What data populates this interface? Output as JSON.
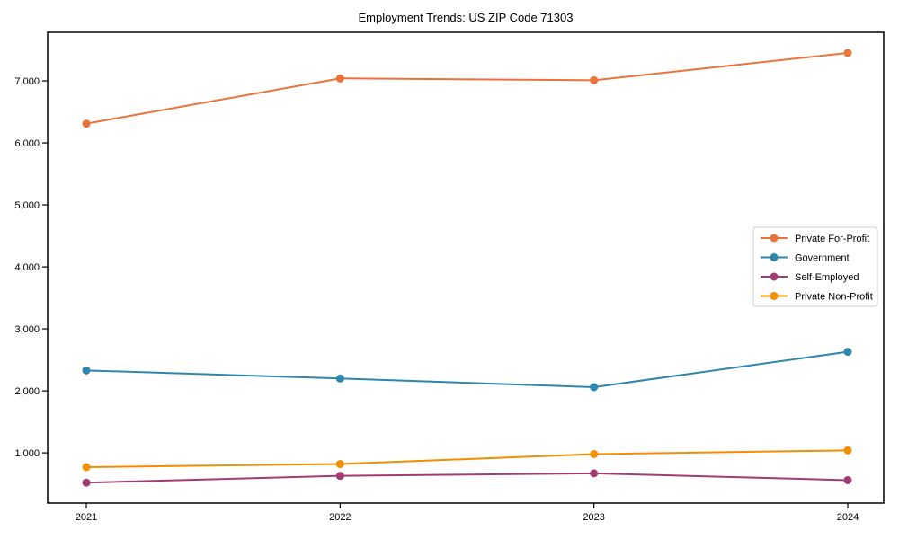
{
  "title": "Employment Trends: US ZIP Code 71303",
  "chart_data": {
    "type": "line",
    "title": "Employment Trends: US ZIP Code 71303",
    "xlabel": "",
    "ylabel": "",
    "x": [
      "2021",
      "2022",
      "2023",
      "2024"
    ],
    "series": [
      {
        "name": "Private For-Profit",
        "color": "#E8743B",
        "values": [
          6310,
          7040,
          7010,
          7450
        ]
      },
      {
        "name": "Government",
        "color": "#2E86AB",
        "values": [
          2330,
          2200,
          2060,
          2630
        ]
      },
      {
        "name": "Self-Employed",
        "color": "#A23B72",
        "values": [
          520,
          630,
          670,
          560
        ]
      },
      {
        "name": "Private Non-Profit",
        "color": "#F18F01",
        "values": [
          770,
          820,
          980,
          1040
        ]
      }
    ],
    "y_ticks": [
      1000,
      2000,
      3000,
      4000,
      5000,
      6000,
      7000
    ],
    "ylim": [
      190,
      7783
    ],
    "grid": false,
    "legend_position": "center right",
    "marker": "circle",
    "legend_border_color": "#cccccc",
    "axis_color": "#000000"
  }
}
